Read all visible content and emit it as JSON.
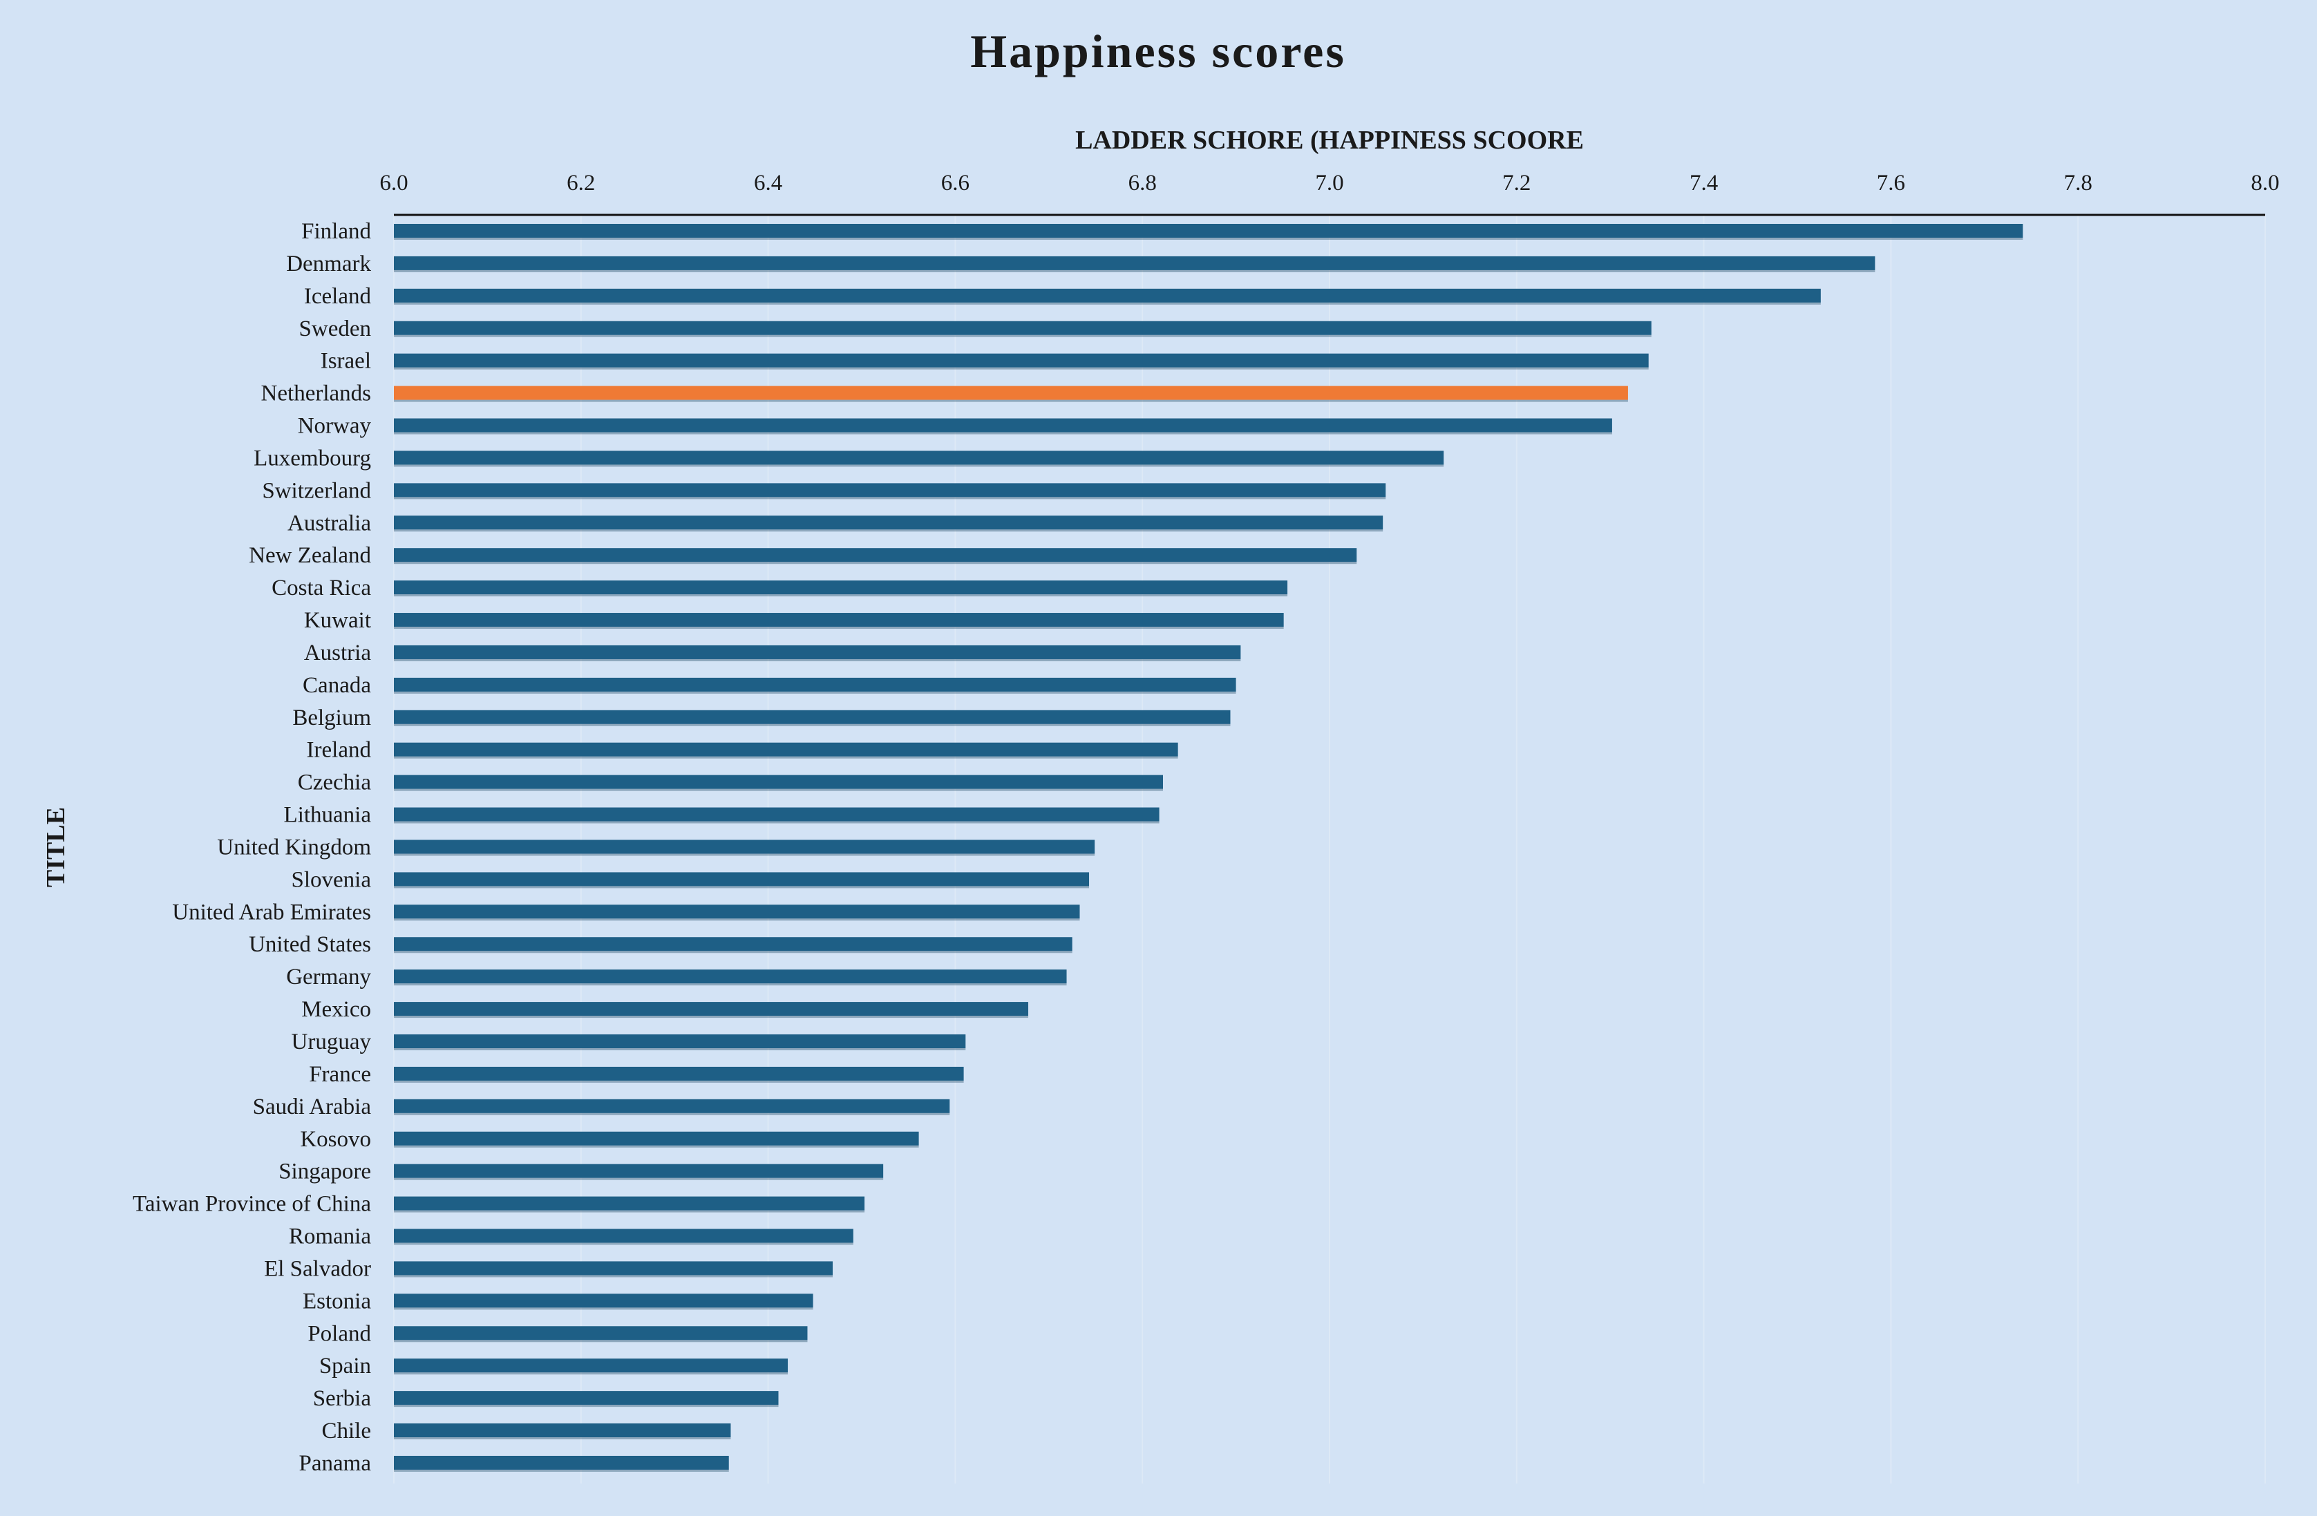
{
  "chart_data": {
    "type": "bar",
    "orientation": "horizontal",
    "title": "Happiness scores",
    "xlabel": "LADDER SCHORE (HAPPINESS SCOORE",
    "ylabel": "TITLE",
    "xlim": [
      6.0,
      8.0
    ],
    "xticks": [
      "6.0",
      "6.2",
      "6.4",
      "6.6",
      "6.8",
      "7.0",
      "7.2",
      "7.4",
      "7.6",
      "7.8",
      "8.0"
    ],
    "x_axis_position": "top",
    "grid": false,
    "bar_color": "#1e5f86",
    "highlight_color": "#ef7a35",
    "highlight_category": "Netherlands",
    "categories": [
      "Finland",
      "Denmark",
      "Iceland",
      "Sweden",
      "Israel",
      "Netherlands",
      "Norway",
      "Luxembourg",
      "Switzerland",
      "Australia",
      "New Zealand",
      "Costa Rica",
      "Kuwait",
      "Austria",
      "Canada",
      "Belgium",
      "Ireland",
      "Czechia",
      "Lithuania",
      "United Kingdom",
      "Slovenia",
      "United Arab Emirates",
      "United States",
      "Germany",
      "Mexico",
      "Uruguay",
      "France",
      "Saudi Arabia",
      "Kosovo",
      "Singapore",
      "Taiwan Province of China",
      "Romania",
      "El Salvador",
      "Estonia",
      "Poland",
      "Spain",
      "Serbia",
      "Chile",
      "Panama"
    ],
    "values": [
      7.741,
      7.583,
      7.525,
      7.344,
      7.341,
      7.319,
      7.302,
      7.122,
      7.06,
      7.057,
      7.029,
      6.955,
      6.951,
      6.905,
      6.9,
      6.894,
      6.838,
      6.822,
      6.818,
      6.749,
      6.743,
      6.733,
      6.725,
      6.719,
      6.678,
      6.611,
      6.609,
      6.594,
      6.561,
      6.523,
      6.503,
      6.491,
      6.469,
      6.448,
      6.442,
      6.421,
      6.411,
      6.36,
      6.358
    ]
  }
}
